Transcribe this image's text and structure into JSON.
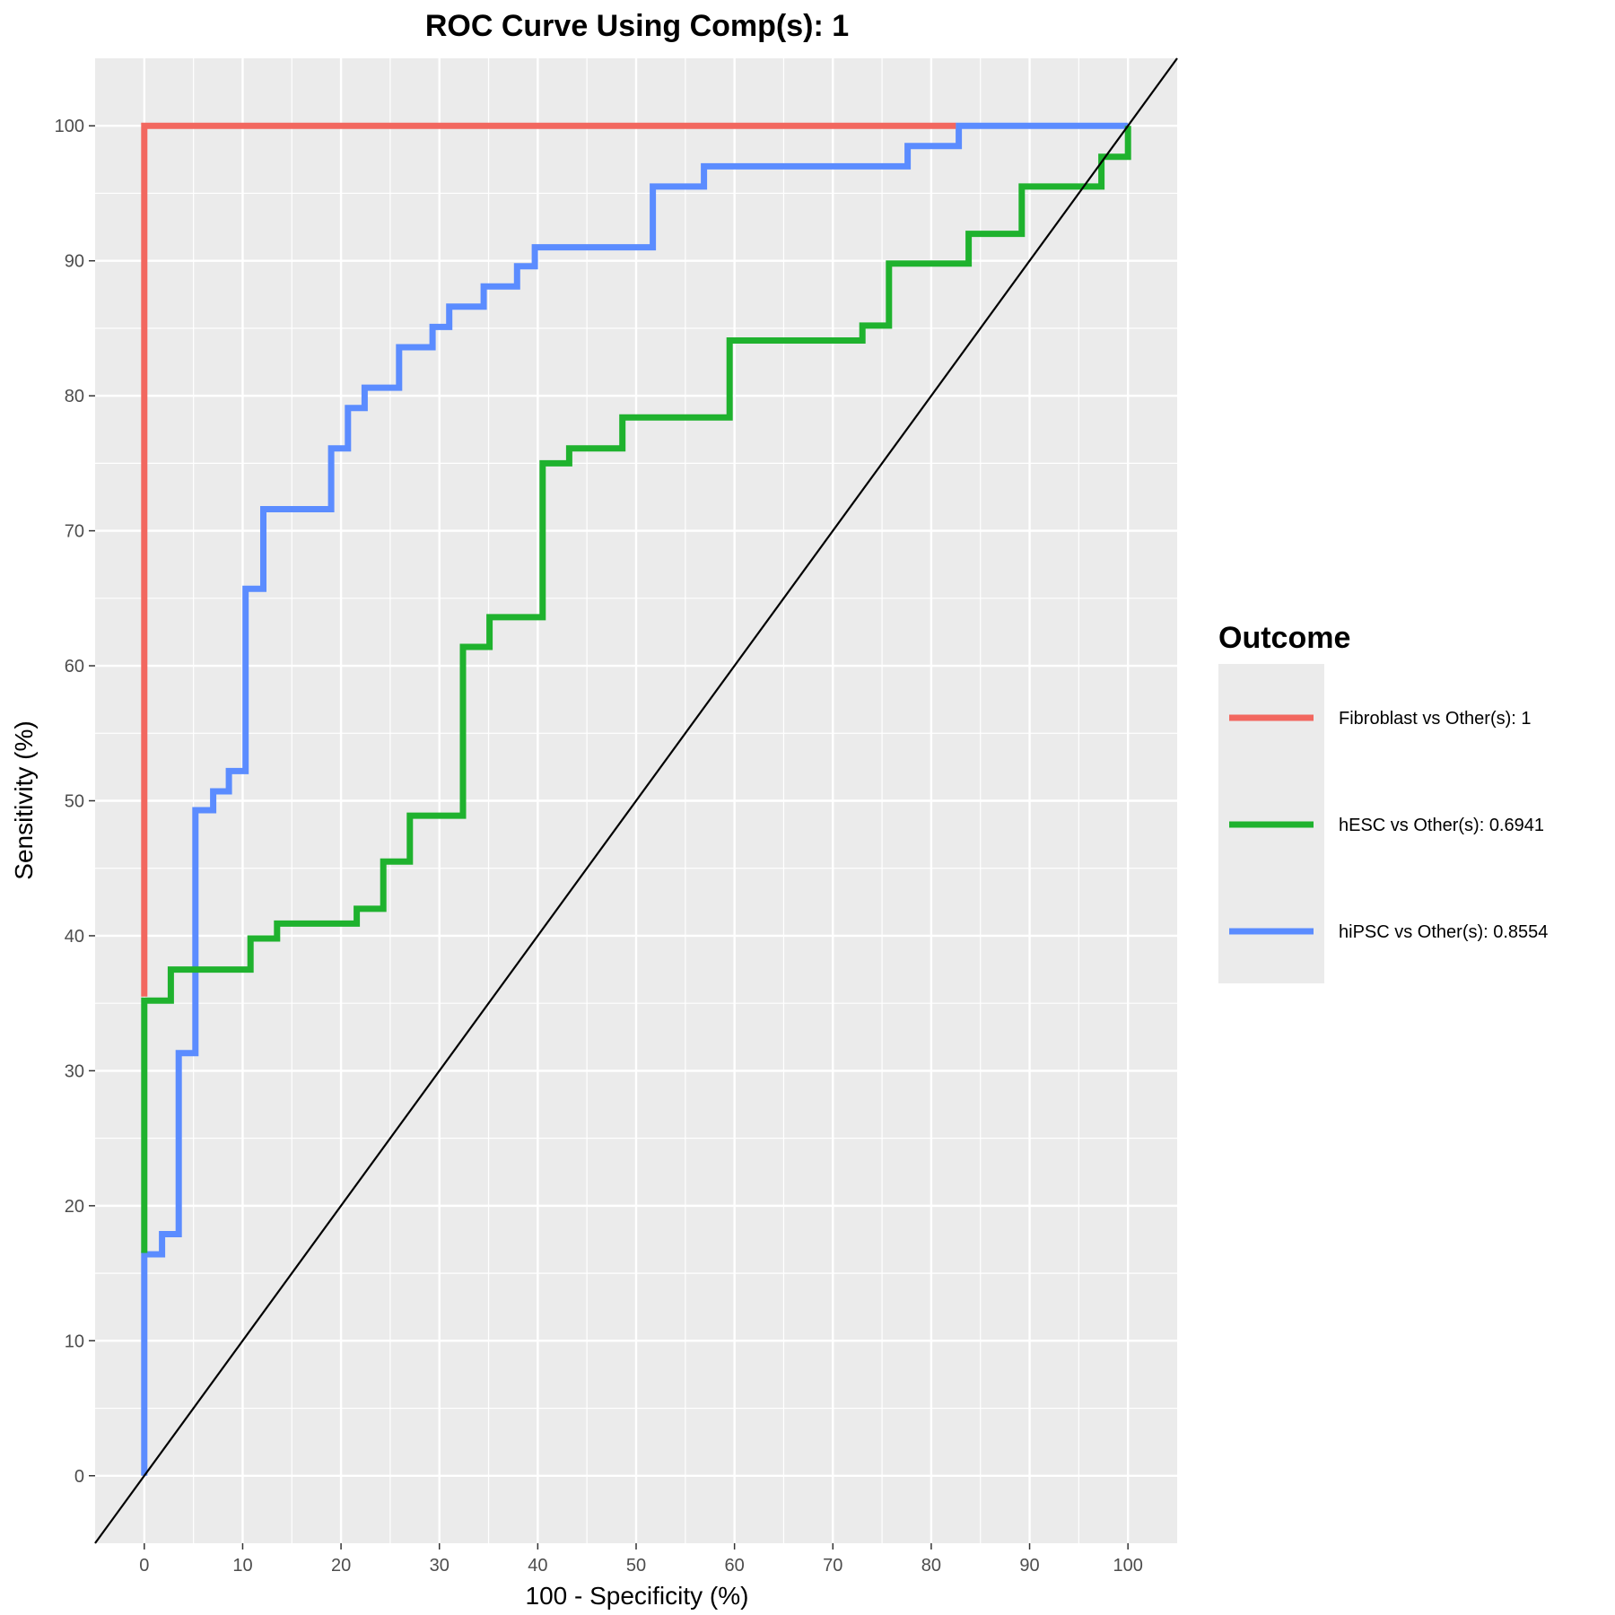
{
  "chart_data": {
    "type": "line",
    "title": "ROC Curve Using Comp(s): 1",
    "xlabel": "100 - Specificity (%)",
    "ylabel": "Sensitivity (%)",
    "xlim": [
      -5,
      105
    ],
    "ylim": [
      -5,
      105
    ],
    "xticks": [
      0,
      10,
      20,
      30,
      40,
      50,
      60,
      70,
      80,
      90,
      100
    ],
    "yticks": [
      0,
      10,
      20,
      30,
      40,
      50,
      60,
      70,
      80,
      90,
      100
    ],
    "grid": true,
    "legend": {
      "title": "Outcome",
      "position": "right"
    },
    "reference_line": {
      "x": [
        0,
        100
      ],
      "y": [
        0,
        100
      ],
      "color": "#000000"
    },
    "series": [
      {
        "name": "Fibroblast vs Other(s): 1",
        "color": "#f2675f",
        "x": [
          0,
          0,
          82.5
        ],
        "y": [
          35.5,
          100,
          100
        ]
      },
      {
        "name": "hESC vs Other(s): 0.6941",
        "color": "#1fb22e",
        "x": [
          0,
          0,
          2.7,
          2.7,
          10.8,
          10.8,
          13.5,
          13.5,
          21.6,
          21.6,
          24.3,
          24.3,
          27.0,
          27.0,
          32.4,
          32.4,
          35.1,
          35.1,
          40.5,
          40.5,
          43.2,
          43.2,
          48.6,
          48.6,
          59.5,
          59.5,
          73.0,
          73.0,
          75.7,
          75.7,
          83.8,
          83.8,
          89.2,
          89.2,
          97.3,
          97.3,
          100,
          100
        ],
        "y": [
          16.5,
          35.2,
          35.2,
          37.5,
          37.5,
          39.8,
          39.8,
          40.9,
          40.9,
          42.0,
          42.0,
          45.5,
          45.5,
          48.9,
          48.9,
          61.4,
          61.4,
          63.6,
          63.6,
          75.0,
          75.0,
          76.1,
          76.1,
          78.4,
          78.4,
          84.1,
          84.1,
          85.2,
          85.2,
          89.8,
          89.8,
          92.0,
          92.0,
          95.5,
          95.5,
          97.7,
          97.7,
          100
        ]
      },
      {
        "name": "hiPSC vs Other(s): 0.8554",
        "color": "#5b8cff",
        "x": [
          0,
          0,
          1.8,
          1.8,
          3.5,
          3.5,
          5.2,
          5.2,
          7.0,
          7.0,
          8.6,
          8.6,
          10.3,
          10.3,
          12.1,
          12.1,
          19.0,
          19.0,
          20.7,
          20.7,
          22.4,
          22.4,
          25.9,
          25.9,
          29.3,
          29.3,
          31.0,
          31.0,
          34.5,
          34.5,
          37.9,
          37.9,
          39.7,
          39.7,
          51.7,
          51.7,
          56.9,
          56.9,
          77.6,
          77.6,
          82.8,
          82.8,
          100
        ],
        "y": [
          0,
          16.4,
          16.4,
          17.9,
          17.9,
          31.3,
          31.3,
          49.3,
          49.3,
          50.7,
          50.7,
          52.2,
          52.2,
          65.7,
          65.7,
          71.6,
          71.6,
          76.1,
          76.1,
          79.1,
          79.1,
          80.6,
          80.6,
          83.6,
          83.6,
          85.1,
          85.1,
          86.6,
          86.6,
          88.1,
          88.1,
          89.6,
          89.6,
          91.0,
          91.0,
          95.5,
          95.5,
          97.0,
          97.0,
          98.5,
          98.5,
          100,
          100
        ]
      }
    ]
  }
}
